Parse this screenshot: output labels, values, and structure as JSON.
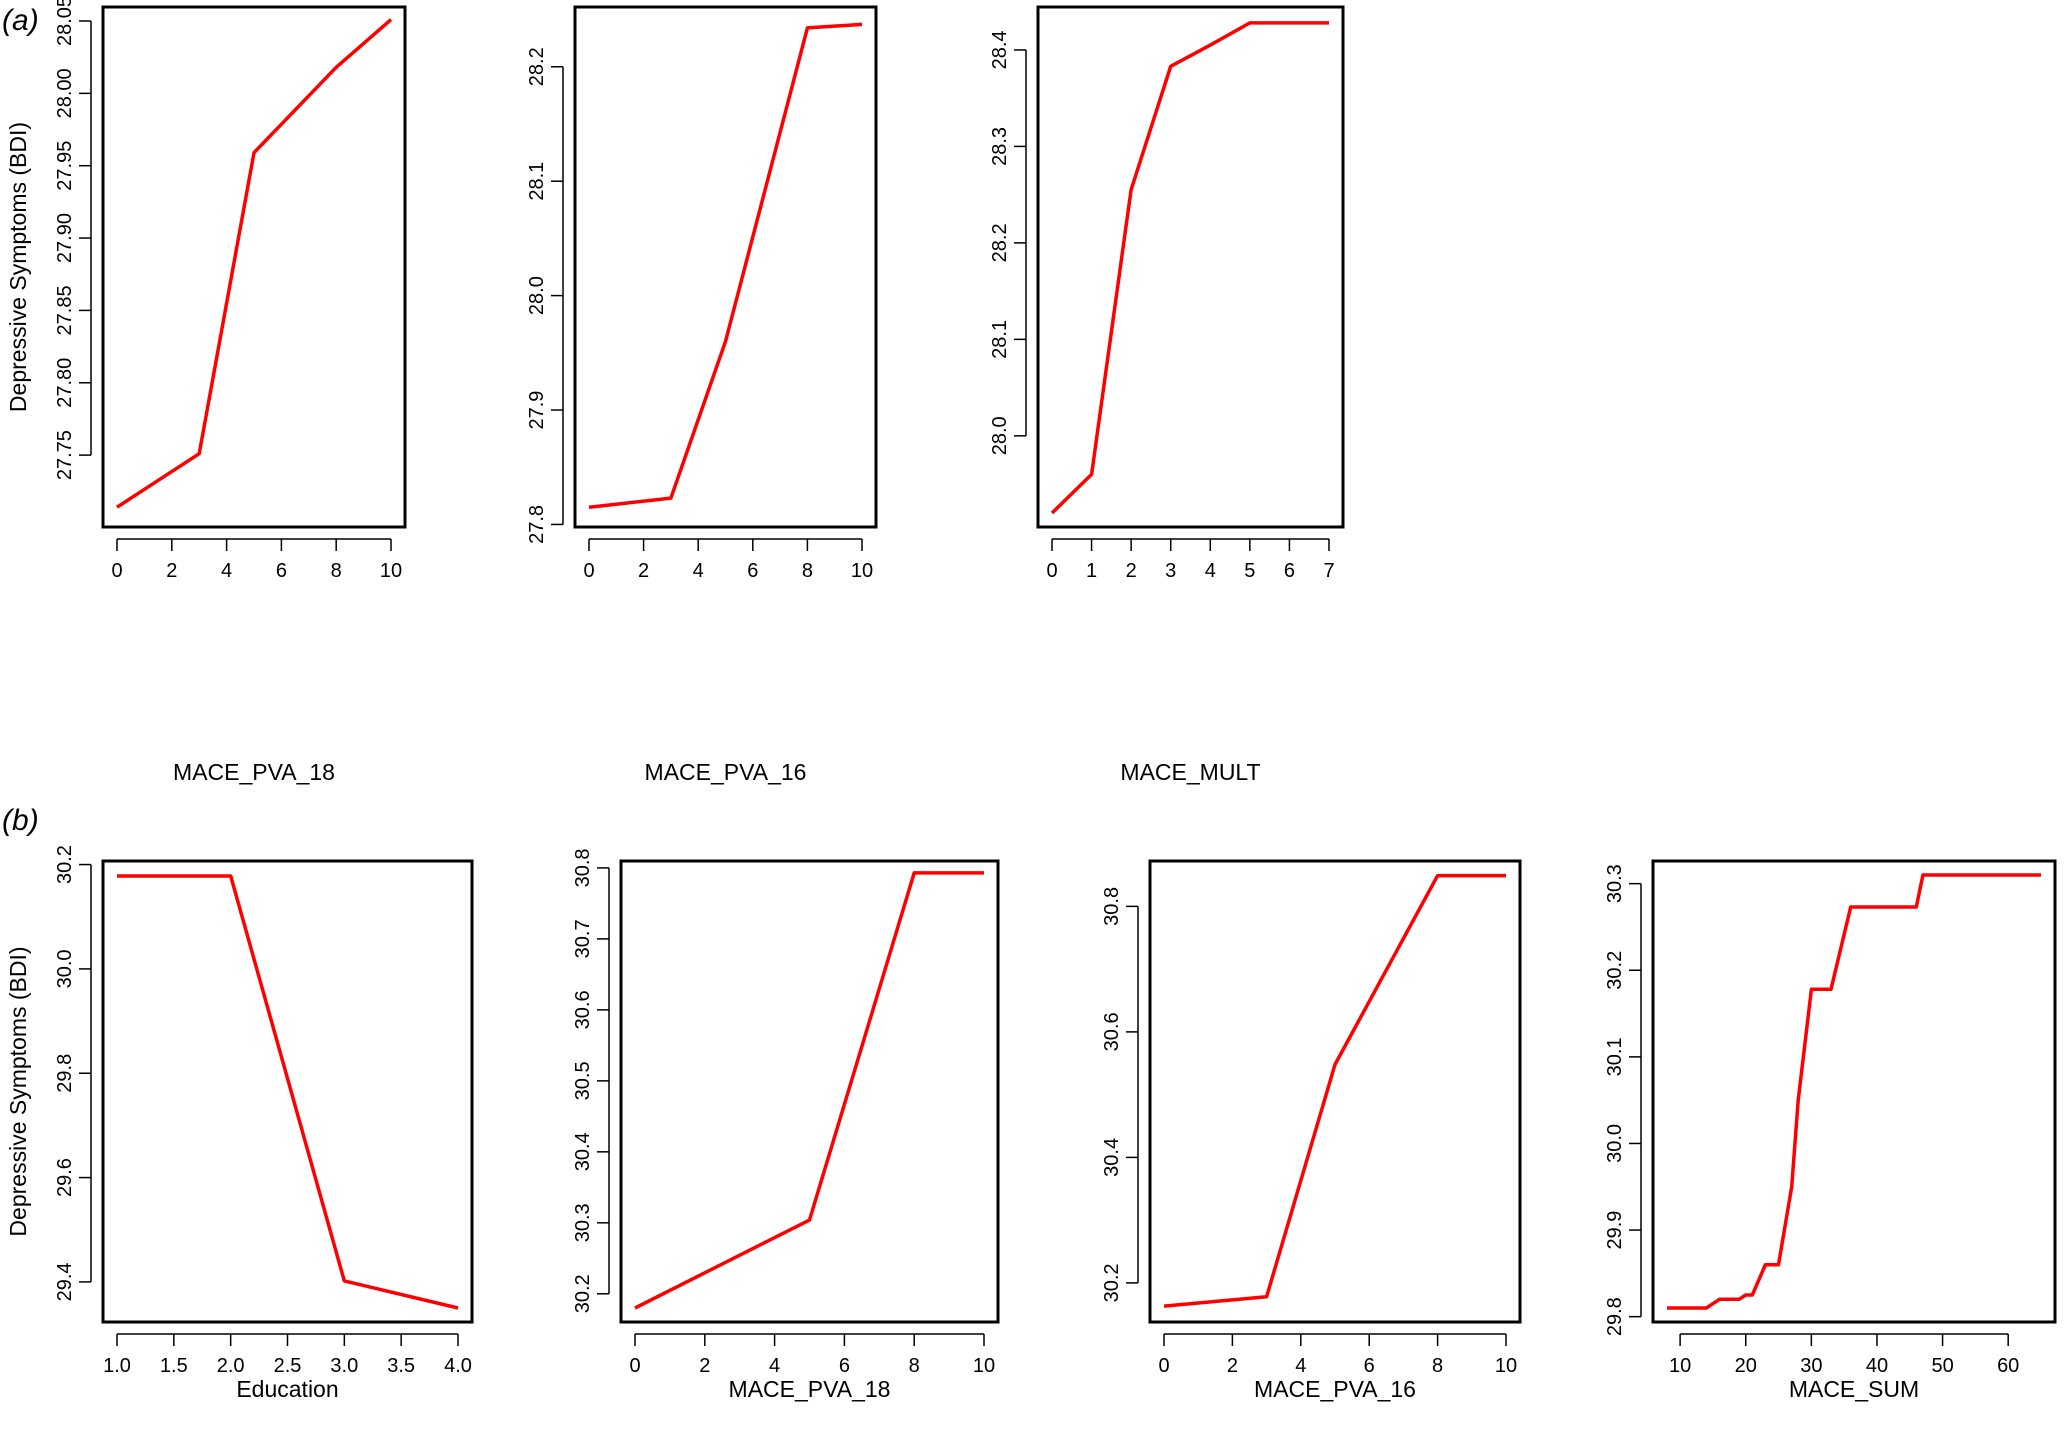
{
  "panel_labels": {
    "a": "a",
    "b": "b"
  },
  "ylabel_shared": "Depressive Symptoms (BDI)",
  "chart_data": [
    {
      "type": "line",
      "row": "a",
      "xlabel": "MACE_PVA_18",
      "ylabel": "Depressive Symptoms (BDI)",
      "color": "#ff0000",
      "xlim": [
        0,
        10
      ],
      "ylim": [
        27.71,
        28.05
      ],
      "xticks": [
        0,
        2,
        4,
        6,
        8,
        10
      ],
      "xtick_labels": [
        "0",
        "2",
        "4",
        "6",
        "8",
        "10"
      ],
      "yticks": [
        27.75,
        27.8,
        27.85,
        27.9,
        27.95,
        28.0,
        28.05
      ],
      "ytick_labels": [
        "27.75",
        "27.80",
        "27.85",
        "27.90",
        "27.95",
        "28.00",
        "28.05"
      ],
      "x": [
        0,
        3,
        5,
        8,
        10
      ],
      "y": [
        27.714,
        27.751,
        27.959,
        28.018,
        28.051
      ]
    },
    {
      "type": "line",
      "row": "a",
      "xlabel": "MACE_PVA_16",
      "ylabel": "",
      "color": "#ff0000",
      "xlim": [
        0,
        10
      ],
      "ylim": [
        27.81,
        28.24
      ],
      "xticks": [
        0,
        2,
        4,
        6,
        8,
        10
      ],
      "xtick_labels": [
        "0",
        "2",
        "4",
        "6",
        "8",
        "10"
      ],
      "yticks": [
        27.8,
        27.9,
        28.0,
        28.1,
        28.2
      ],
      "ytick_labels": [
        "27.8",
        "27.9",
        "28.0",
        "28.1",
        "28.2"
      ],
      "x": [
        0,
        3,
        5,
        8,
        10
      ],
      "y": [
        27.815,
        27.823,
        27.96,
        28.234,
        28.237
      ]
    },
    {
      "type": "line",
      "row": "a",
      "xlabel": "MACE_MULT",
      "ylabel": "",
      "color": "#ff0000",
      "xlim": [
        0,
        7
      ],
      "ylim": [
        27.92,
        28.43
      ],
      "xticks": [
        0,
        1,
        2,
        3,
        4,
        5,
        6,
        7
      ],
      "xtick_labels": [
        "0",
        "1",
        "2",
        "3",
        "4",
        "5",
        "6",
        "7"
      ],
      "yticks": [
        28.0,
        28.1,
        28.2,
        28.3,
        28.4
      ],
      "ytick_labels": [
        "28.0",
        "28.1",
        "28.2",
        "28.3",
        "28.4"
      ],
      "x": [
        0,
        1,
        2,
        3,
        4,
        5,
        6,
        7
      ],
      "y": [
        27.92,
        27.96,
        28.255,
        28.383,
        28.405,
        28.428,
        28.428,
        28.428
      ]
    },
    {
      "type": "line",
      "row": "b",
      "xlabel": "Education",
      "ylabel": "Depressive Symptoms (BDI)",
      "color": "#ff0000",
      "xlim": [
        1,
        4
      ],
      "ylim": [
        29.35,
        30.18
      ],
      "xticks": [
        1.0,
        1.5,
        2.0,
        2.5,
        3.0,
        3.5,
        4.0
      ],
      "xtick_labels": [
        "1.0",
        "1.5",
        "2.0",
        "2.5",
        "3.0",
        "3.5",
        "4.0"
      ],
      "yticks": [
        29.4,
        29.6,
        29.8,
        30.0,
        30.2
      ],
      "ytick_labels": [
        "29.4",
        "29.6",
        "29.8",
        "30.0",
        "30.2"
      ],
      "x": [
        1,
        2,
        3,
        4
      ],
      "y": [
        30.178,
        30.178,
        29.402,
        29.35
      ]
    },
    {
      "type": "line",
      "row": "b",
      "xlabel": "MACE_PVA_18",
      "ylabel": "",
      "color": "#ff0000",
      "xlim": [
        0,
        10
      ],
      "ylim": [
        30.18,
        30.79
      ],
      "xticks": [
        0,
        2,
        4,
        6,
        8,
        10
      ],
      "xtick_labels": [
        "0",
        "2",
        "4",
        "6",
        "8",
        "10"
      ],
      "yticks": [
        30.2,
        30.3,
        30.4,
        30.5,
        30.6,
        30.7,
        30.8
      ],
      "ytick_labels": [
        "30.2",
        "30.3",
        "30.4",
        "30.5",
        "30.6",
        "30.7",
        "30.8"
      ],
      "x": [
        0,
        5,
        8,
        10
      ],
      "y": [
        30.18,
        30.304,
        30.793,
        30.793
      ]
    },
    {
      "type": "line",
      "row": "b",
      "xlabel": "MACE_PVA_16",
      "ylabel": "",
      "color": "#ff0000",
      "xlim": [
        0,
        10
      ],
      "ylim": [
        30.16,
        30.85
      ],
      "xticks": [
        0,
        2,
        4,
        6,
        8,
        10
      ],
      "xtick_labels": [
        "0",
        "2",
        "4",
        "6",
        "8",
        "10"
      ],
      "yticks": [
        30.2,
        30.4,
        30.6,
        30.8
      ],
      "ytick_labels": [
        "30.2",
        "30.4",
        "30.6",
        "30.8"
      ],
      "x": [
        0,
        3,
        5,
        8,
        10
      ],
      "y": [
        30.163,
        30.178,
        30.548,
        30.849,
        30.849
      ]
    },
    {
      "type": "line",
      "row": "b",
      "step": true,
      "xlabel": "MACE_SUM",
      "ylabel": "",
      "color": "#ff0000",
      "xlim": [
        8,
        65
      ],
      "ylim": [
        29.81,
        30.31
      ],
      "xticks": [
        10,
        20,
        30,
        40,
        50,
        60
      ],
      "xtick_labels": [
        "10",
        "20",
        "30",
        "40",
        "50",
        "60"
      ],
      "yticks": [
        29.8,
        29.9,
        30.0,
        30.1,
        30.2,
        30.3
      ],
      "ytick_labels": [
        "29.8",
        "29.9",
        "30.0",
        "30.1",
        "30.2",
        "30.3"
      ],
      "x": [
        8,
        14,
        16,
        19,
        20,
        21,
        23,
        25,
        27,
        28,
        30,
        33,
        36,
        46,
        47,
        65
      ],
      "y": [
        29.81,
        29.81,
        29.82,
        29.82,
        29.825,
        29.825,
        29.86,
        29.86,
        29.95,
        30.05,
        30.178,
        30.178,
        30.273,
        30.273,
        30.31,
        30.31
      ]
    }
  ]
}
